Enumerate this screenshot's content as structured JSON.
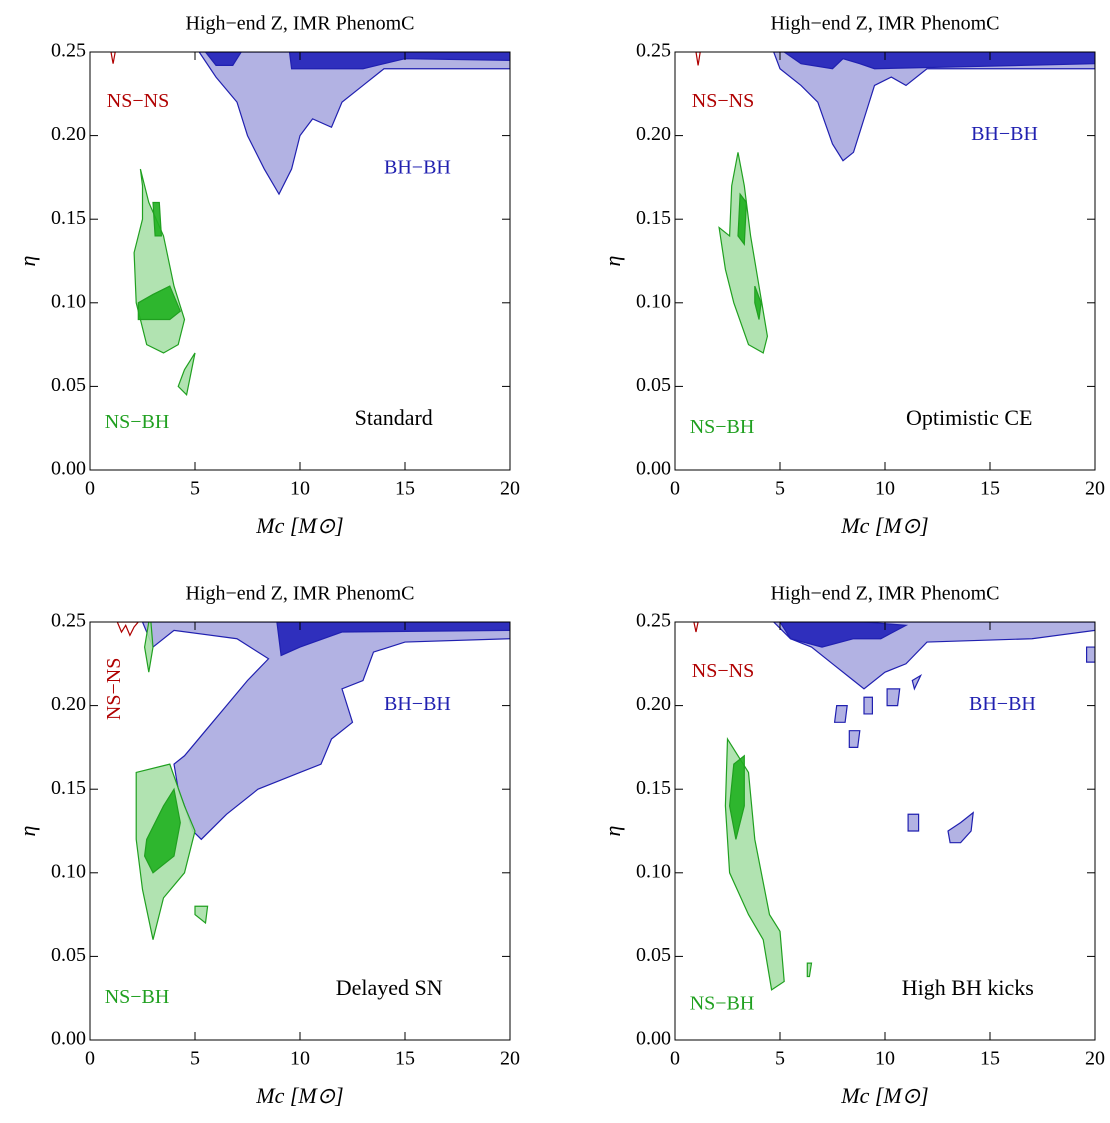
{
  "chart_data": [
    {
      "type": "contour",
      "title": "High−end Z,   IMR PhenomC",
      "xlabel": "Mc  [M⊙]",
      "ylabel": "η",
      "panel_label": "Standard",
      "xlim": [
        0,
        20
      ],
      "ylim": [
        0,
        0.25
      ],
      "xticks": [
        0,
        5,
        10,
        15,
        20
      ],
      "yticks": [
        {
          "value": 0,
          "label": "0.00"
        },
        {
          "value": 0.05,
          "label": "0.05"
        },
        {
          "value": 0.1,
          "label": "0.10"
        },
        {
          "value": 0.15,
          "label": "0.15"
        },
        {
          "value": 0.2,
          "label": "0.20"
        },
        {
          "value": 0.25,
          "label": "0.25"
        }
      ],
      "annotations": [
        {
          "text": "NS−NS",
          "x": 0.8,
          "y": 0.22,
          "color": "#b00000"
        },
        {
          "text": "BH−BH",
          "x": 14,
          "y": 0.18,
          "color": "#2020b0"
        },
        {
          "text": "NS−BH",
          "x": 0.7,
          "y": 0.028,
          "color": "#20a020"
        }
      ],
      "label_pos": [
        12.6,
        0.03
      ],
      "regions": [
        {
          "fill": "#aaaae0",
          "stroke": "#2020b0",
          "x": [
            5.2,
            6,
            7,
            7.5,
            8.3,
            9,
            9.6,
            10,
            10.6,
            11.5,
            12,
            13,
            14,
            20,
            20
          ],
          "y": [
            0.25,
            0.235,
            0.22,
            0.2,
            0.18,
            0.165,
            0.18,
            0.2,
            0.21,
            0.205,
            0.22,
            0.23,
            0.24,
            0.24,
            0.25
          ]
        },
        {
          "fill": "#2020b8",
          "stroke": "#2020b0",
          "x": [
            5.5,
            6,
            6.8,
            7.2
          ],
          "y": [
            0.25,
            0.242,
            0.242,
            0.25
          ]
        },
        {
          "fill": "#2020b8",
          "stroke": "#2020b0",
          "x": [
            9.5,
            9.6,
            13,
            15,
            20,
            20
          ],
          "y": [
            0.25,
            0.24,
            0.24,
            0.246,
            0.245,
            0.25
          ]
        },
        {
          "fill": "none",
          "stroke": "#b00000",
          "x": [
            1.0,
            1.1,
            1.2
          ],
          "y": [
            0.25,
            0.243,
            0.25
          ]
        },
        {
          "fill": "#a8e0a8",
          "stroke": "#20a020",
          "x": [
            2.4,
            2.6,
            2.8,
            3.5,
            4,
            4.5,
            4.2,
            3.5,
            2.7,
            2.2,
            2.1,
            2.5,
            2.5
          ],
          "y": [
            0.18,
            0.17,
            0.16,
            0.14,
            0.11,
            0.09,
            0.075,
            0.07,
            0.075,
            0.1,
            0.13,
            0.15,
            0.17
          ]
        },
        {
          "fill": "#a8e0a8",
          "stroke": "#20a020",
          "x": [
            4.2,
            4.5,
            5,
            4.6
          ],
          "y": [
            0.05,
            0.06,
            0.07,
            0.045
          ]
        },
        {
          "fill": "#20b020",
          "stroke": "#20a020",
          "x": [
            3.0,
            3.3,
            3.4,
            3.1
          ],
          "y": [
            0.16,
            0.16,
            0.14,
            0.14
          ]
        },
        {
          "fill": "#20b020",
          "stroke": "#20a020",
          "x": [
            2.3,
            3,
            3.8,
            4.3,
            3.8,
            2.3
          ],
          "y": [
            0.1,
            0.105,
            0.11,
            0.095,
            0.09,
            0.09
          ]
        }
      ]
    },
    {
      "type": "contour",
      "title": "High−end Z,   IMR PhenomC",
      "xlabel": "Mc  [M⊙]",
      "ylabel": "η",
      "panel_label": "Optimistic CE",
      "xlim": [
        0,
        20
      ],
      "ylim": [
        0,
        0.25
      ],
      "xticks": [
        0,
        5,
        10,
        15,
        20
      ],
      "yticks": [
        {
          "value": 0,
          "label": "0.00"
        },
        {
          "value": 0.05,
          "label": "0.05"
        },
        {
          "value": 0.1,
          "label": "0.10"
        },
        {
          "value": 0.15,
          "label": "0.15"
        },
        {
          "value": 0.2,
          "label": "0.20"
        },
        {
          "value": 0.25,
          "label": "0.25"
        }
      ],
      "annotations": [
        {
          "text": "NS−NS",
          "x": 0.8,
          "y": 0.22,
          "color": "#b00000"
        },
        {
          "text": "BH−BH",
          "x": 14.1,
          "y": 0.2,
          "color": "#2020b0"
        },
        {
          "text": "NS−BH",
          "x": 0.7,
          "y": 0.025,
          "color": "#20a020"
        }
      ],
      "label_pos": [
        11,
        0.03
      ],
      "regions": [
        {
          "fill": "#aaaae0",
          "stroke": "#2020b0",
          "x": [
            4.7,
            5,
            6,
            6.8,
            7.5,
            8,
            8.5,
            9,
            9.5,
            10.3,
            11,
            12,
            20,
            20
          ],
          "y": [
            0.25,
            0.24,
            0.23,
            0.22,
            0.195,
            0.185,
            0.19,
            0.21,
            0.23,
            0.235,
            0.23,
            0.24,
            0.24,
            0.25
          ]
        },
        {
          "fill": "#2020b8",
          "stroke": "#2020b0",
          "x": [
            5.2,
            6,
            7.5,
            8,
            8.8,
            9.5,
            20,
            20
          ],
          "y": [
            0.25,
            0.243,
            0.24,
            0.246,
            0.243,
            0.24,
            0.243,
            0.25
          ]
        },
        {
          "fill": "none",
          "stroke": "#b00000",
          "x": [
            1.0,
            1.1,
            1.2
          ],
          "y": [
            0.25,
            0.242,
            0.25
          ]
        },
        {
          "fill": "#a8e0a8",
          "stroke": "#20a020",
          "x": [
            3,
            3.3,
            3.6,
            4,
            4.4,
            4.2,
            3.5,
            2.8,
            2.4,
            2.1,
            2.6,
            2.7
          ],
          "y": [
            0.19,
            0.17,
            0.14,
            0.11,
            0.08,
            0.07,
            0.075,
            0.1,
            0.12,
            0.145,
            0.14,
            0.17
          ]
        },
        {
          "fill": "#20b020",
          "stroke": "#20a020",
          "x": [
            3.1,
            3.4,
            3.3,
            3.0
          ],
          "y": [
            0.165,
            0.16,
            0.135,
            0.14
          ]
        },
        {
          "fill": "#20b020",
          "stroke": "#20a020",
          "x": [
            3.8,
            4.1,
            4.0,
            3.8
          ],
          "y": [
            0.11,
            0.1,
            0.09,
            0.1
          ]
        }
      ]
    },
    {
      "type": "contour",
      "title": "High−end Z,   IMR PhenomC",
      "xlabel": "Mc  [M⊙]",
      "ylabel": "η",
      "panel_label": "Delayed SN",
      "xlim": [
        0,
        20
      ],
      "ylim": [
        0,
        0.25
      ],
      "xticks": [
        0,
        5,
        10,
        15,
        20
      ],
      "yticks": [
        {
          "value": 0,
          "label": "0.00"
        },
        {
          "value": 0.05,
          "label": "0.05"
        },
        {
          "value": 0.1,
          "label": "0.10"
        },
        {
          "value": 0.15,
          "label": "0.15"
        },
        {
          "value": 0.2,
          "label": "0.20"
        },
        {
          "value": 0.25,
          "label": "0.25"
        }
      ],
      "annotations": [
        {
          "text": "NS−NS",
          "x": 1.2,
          "y": 0.21,
          "color": "#b00000",
          "rotate": -90
        },
        {
          "text": "BH−BH",
          "x": 14,
          "y": 0.2,
          "color": "#2020b0"
        },
        {
          "text": "NS−BH",
          "x": 0.7,
          "y": 0.025,
          "color": "#20a020"
        }
      ],
      "label_pos": [
        11.7,
        0.03
      ],
      "regions": [
        {
          "fill": "#aaaae0",
          "stroke": "#2020b0",
          "x": [
            2.5,
            20,
            20,
            15,
            13.5,
            13,
            12,
            12.5,
            11.5,
            11,
            10,
            9,
            8,
            6.5,
            5.3,
            4.9,
            4.5,
            4.2,
            4,
            4.5,
            5.5,
            6.5,
            7.5,
            8.5,
            7,
            4,
            3
          ],
          "y": [
            0.25,
            0.25,
            0.24,
            0.238,
            0.232,
            0.215,
            0.21,
            0.19,
            0.18,
            0.165,
            0.16,
            0.155,
            0.15,
            0.135,
            0.12,
            0.125,
            0.14,
            0.15,
            0.165,
            0.17,
            0.185,
            0.2,
            0.215,
            0.228,
            0.24,
            0.245,
            0.235
          ]
        },
        {
          "fill": "#2020b8",
          "stroke": "#2020b0",
          "x": [
            8.9,
            20,
            20,
            12,
            10,
            9.1
          ],
          "y": [
            0.25,
            0.25,
            0.245,
            0.244,
            0.235,
            0.23
          ]
        },
        {
          "fill": "none",
          "stroke": "#b00000",
          "x": [
            1.3,
            1.5,
            1.7,
            1.9,
            2.1,
            2.3
          ],
          "y": [
            0.25,
            0.244,
            0.248,
            0.242,
            0.247,
            0.25
          ]
        },
        {
          "fill": "#a8e0a8",
          "stroke": "#20a020",
          "x": [
            2.8,
            2.6,
            2.8,
            3,
            2.9
          ],
          "y": [
            0.25,
            0.235,
            0.22,
            0.235,
            0.25
          ]
        },
        {
          "fill": "#a8e0a8",
          "stroke": "#20a020",
          "x": [
            2.2,
            3.8,
            4.5,
            5,
            4.5,
            3.5,
            3,
            2.5,
            2.2
          ],
          "y": [
            0.16,
            0.165,
            0.14,
            0.125,
            0.1,
            0.085,
            0.06,
            0.09,
            0.12
          ]
        },
        {
          "fill": "#a8e0a8",
          "stroke": "#20a020",
          "x": [
            5,
            5.6,
            5.5,
            5
          ],
          "y": [
            0.08,
            0.08,
            0.07,
            0.075
          ]
        },
        {
          "fill": "#20b020",
          "stroke": "#20a020",
          "x": [
            2.7,
            3.5,
            4,
            4.3,
            4,
            3,
            2.6
          ],
          "y": [
            0.12,
            0.14,
            0.15,
            0.13,
            0.11,
            0.1,
            0.11
          ]
        }
      ]
    },
    {
      "type": "contour",
      "title": "High−end Z,   IMR PhenomC",
      "xlabel": "Mc  [M⊙]",
      "ylabel": "η",
      "panel_label": "High BH kicks",
      "xlim": [
        0,
        20
      ],
      "ylim": [
        0,
        0.25
      ],
      "xticks": [
        0,
        5,
        10,
        15,
        20
      ],
      "yticks": [
        {
          "value": 0,
          "label": "0.00"
        },
        {
          "value": 0.05,
          "label": "0.05"
        },
        {
          "value": 0.1,
          "label": "0.10"
        },
        {
          "value": 0.15,
          "label": "0.15"
        },
        {
          "value": 0.2,
          "label": "0.20"
        },
        {
          "value": 0.25,
          "label": "0.25"
        }
      ],
      "annotations": [
        {
          "text": "NS−NS",
          "x": 0.8,
          "y": 0.22,
          "color": "#b00000"
        },
        {
          "text": "BH−BH",
          "x": 14,
          "y": 0.2,
          "color": "#2020b0"
        },
        {
          "text": "NS−BH",
          "x": 0.7,
          "y": 0.021,
          "color": "#20a020"
        }
      ],
      "label_pos": [
        10.8,
        0.03
      ],
      "regions": [
        {
          "fill": "#aaaae0",
          "stroke": "#2020b0",
          "x": [
            4.7,
            20,
            20,
            17,
            12,
            11,
            10,
            9,
            8.5,
            7.5,
            6.5,
            5.5
          ],
          "y": [
            0.25,
            0.25,
            0.245,
            0.24,
            0.238,
            0.225,
            0.22,
            0.21,
            0.215,
            0.225,
            0.235,
            0.24
          ]
        },
        {
          "fill": "#2020b8",
          "stroke": "#2020b0",
          "x": [
            5,
            9,
            11,
            9.8,
            8.5,
            7,
            5.5
          ],
          "y": [
            0.25,
            0.25,
            0.248,
            0.24,
            0.24,
            0.235,
            0.24
          ]
        },
        {
          "fill": "#aaaae0",
          "stroke": "#2020b0",
          "x": [
            7.7,
            8.2,
            8.1,
            7.6
          ],
          "y": [
            0.2,
            0.2,
            0.19,
            0.19
          ]
        },
        {
          "fill": "#aaaae0",
          "stroke": "#2020b0",
          "x": [
            8.3,
            8.8,
            8.7,
            8.3
          ],
          "y": [
            0.185,
            0.185,
            0.175,
            0.175
          ]
        },
        {
          "fill": "#aaaae0",
          "stroke": "#2020b0",
          "x": [
            9,
            9.4,
            9.4,
            9
          ],
          "y": [
            0.205,
            0.205,
            0.195,
            0.195
          ]
        },
        {
          "fill": "#aaaae0",
          "stroke": "#2020b0",
          "x": [
            10.1,
            10.7,
            10.6,
            10.1
          ],
          "y": [
            0.21,
            0.21,
            0.2,
            0.2
          ]
        },
        {
          "fill": "#aaaae0",
          "stroke": "#2020b0",
          "x": [
            11.3,
            11.7,
            11.4
          ],
          "y": [
            0.215,
            0.218,
            0.21
          ]
        },
        {
          "fill": "#aaaae0",
          "stroke": "#2020b0",
          "x": [
            11.1,
            11.6,
            11.6,
            11.1
          ],
          "y": [
            0.135,
            0.135,
            0.125,
            0.125
          ]
        },
        {
          "fill": "#aaaae0",
          "stroke": "#2020b0",
          "x": [
            13,
            13.6,
            14.2,
            14.1,
            13.6,
            13.1
          ],
          "y": [
            0.125,
            0.13,
            0.136,
            0.125,
            0.118,
            0.118
          ]
        },
        {
          "fill": "#aaaae0",
          "stroke": "#2020b0",
          "x": [
            19.6,
            20,
            20,
            19.6
          ],
          "y": [
            0.235,
            0.235,
            0.226,
            0.226
          ]
        },
        {
          "fill": "none",
          "stroke": "#b00000",
          "x": [
            0.9,
            1.0,
            1.1
          ],
          "y": [
            0.25,
            0.244,
            0.25
          ]
        },
        {
          "fill": "#a8e0a8",
          "stroke": "#20a020",
          "x": [
            2.5,
            3.5,
            3.8,
            4.5,
            5,
            5.2,
            4.6,
            4.2,
            3.5,
            2.6,
            2.4
          ],
          "y": [
            0.18,
            0.16,
            0.12,
            0.075,
            0.065,
            0.035,
            0.03,
            0.06,
            0.075,
            0.1,
            0.14
          ]
        },
        {
          "fill": "#a8e0a8",
          "stroke": "#20a020",
          "x": [
            6.3,
            6.5,
            6.4,
            6.3
          ],
          "y": [
            0.046,
            0.046,
            0.038,
            0.038
          ]
        },
        {
          "fill": "#20b020",
          "stroke": "#20a020",
          "x": [
            2.8,
            3.3,
            3.3,
            2.9,
            2.6
          ],
          "y": [
            0.165,
            0.17,
            0.14,
            0.12,
            0.14
          ]
        }
      ]
    }
  ]
}
